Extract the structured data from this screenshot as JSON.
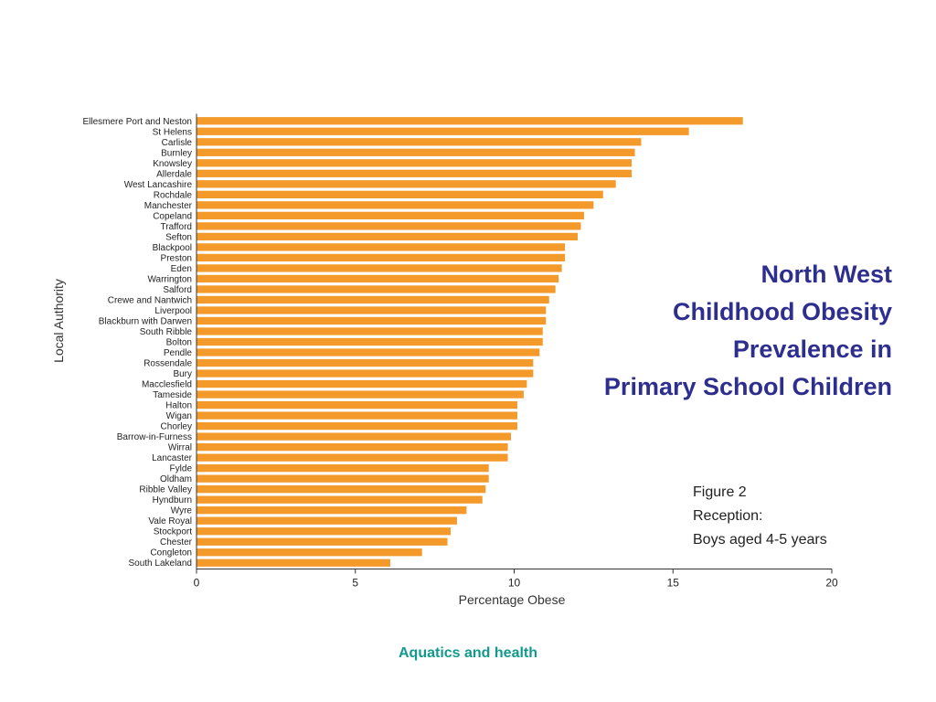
{
  "title_lines": [
    "North West",
    "Childhood Obesity",
    "Prevalence in",
    "Primary School Children"
  ],
  "figure_lines": [
    "Figure 2",
    "Reception:",
    "Boys aged 4-5 years"
  ],
  "footer": "Aquatics and health",
  "colors": {
    "bar": "#f39a2a",
    "title": "#2e2e8f",
    "footer": "#12998e",
    "axis": "#333333"
  },
  "chart_data": {
    "type": "bar",
    "orientation": "horizontal",
    "xlabel": "Percentage Obese",
    "ylabel": "Local Authority",
    "xlim": [
      0,
      20
    ],
    "xticks": [
      0,
      5,
      10,
      15,
      20
    ],
    "grid": false,
    "categories": [
      "Ellesmere Port and Neston",
      "St Helens",
      "Carlisle",
      "Burnley",
      "Knowsley",
      "Allerdale",
      "West Lancashire",
      "Rochdale",
      "Manchester",
      "Copeland",
      "Trafford",
      "Sefton",
      "Blackpool",
      "Preston",
      "Eden",
      "Warrington",
      "Salford",
      "Crewe and Nantwich",
      "Liverpool",
      "Blackburn with Darwen",
      "South Ribble",
      "Bolton",
      "Pendle",
      "Rossendale",
      "Bury",
      "Macclesfield",
      "Tameside",
      "Halton",
      "Wigan",
      "Chorley",
      "Barrow-in-Furness",
      "Wirral",
      "Lancaster",
      "Fylde",
      "Oldham",
      "Ribble Valley",
      "Hyndburn",
      "Wyre",
      "Vale Royal",
      "Stockport",
      "Chester",
      "Congleton",
      "South Lakeland"
    ],
    "values": [
      17.2,
      15.5,
      14.0,
      13.8,
      13.7,
      13.7,
      13.2,
      12.8,
      12.5,
      12.2,
      12.1,
      12.0,
      11.6,
      11.6,
      11.5,
      11.4,
      11.3,
      11.1,
      11.0,
      11.0,
      10.9,
      10.9,
      10.8,
      10.6,
      10.6,
      10.4,
      10.3,
      10.1,
      10.1,
      10.1,
      9.9,
      9.8,
      9.8,
      9.2,
      9.2,
      9.1,
      9.0,
      8.5,
      8.2,
      8.0,
      7.9,
      7.1,
      6.1
    ]
  }
}
